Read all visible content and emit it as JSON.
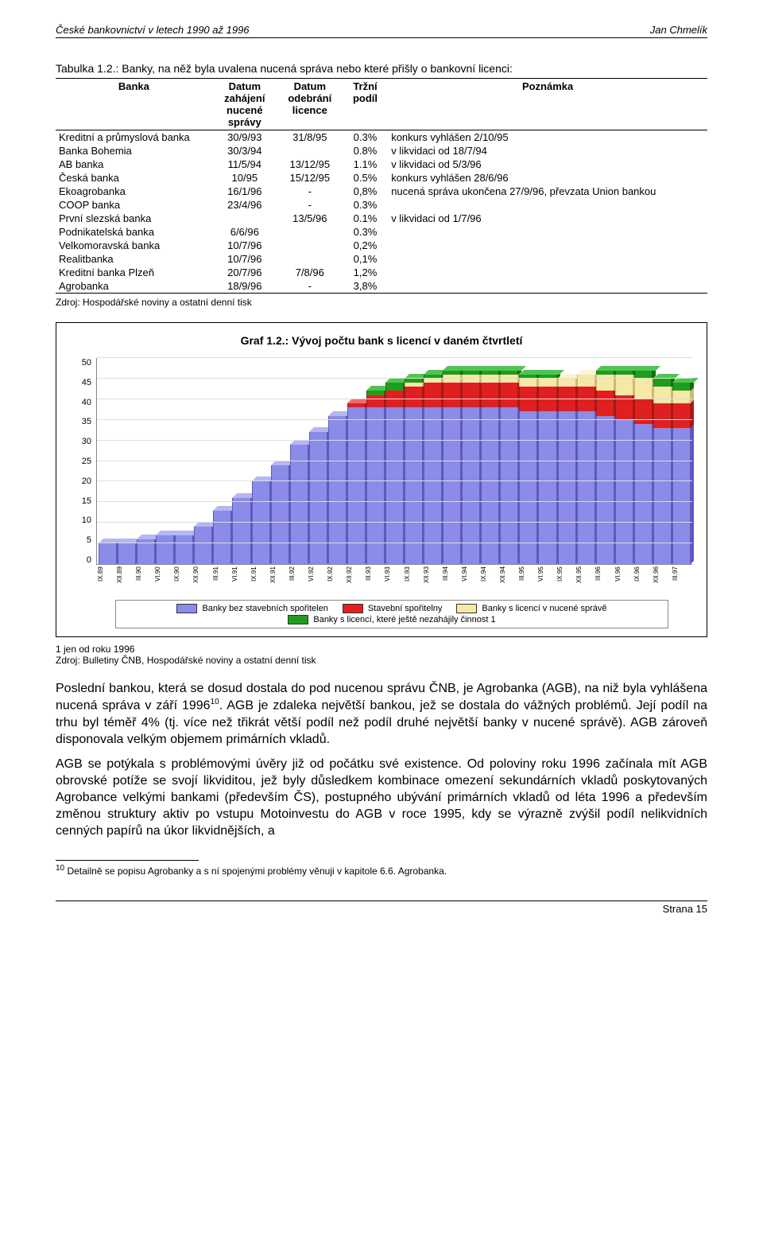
{
  "running_head": {
    "left": "České bankovnictví v letech 1990 až 1996",
    "right": "Jan Chmelík"
  },
  "table": {
    "caption": "Tabulka 1.2.: Banky, na něž byla uvalena nucená správa nebo které přišly o bankovní licenci:",
    "head": {
      "bank": "Banka",
      "d1": "Datum zahájení nucené správy",
      "d2": "Datum odebrání licence",
      "share": "Tržní podíl",
      "note": "Poznámka"
    },
    "rows": [
      {
        "bank": "Kreditní a průmyslová banka",
        "d1": "30/9/93",
        "d2": "31/8/95",
        "share": "0.3%",
        "note": "konkurs vyhlášen 2/10/95"
      },
      {
        "bank": "Banka Bohemia",
        "d1": "30/3/94",
        "d2": "",
        "share": "0.8%",
        "note": "v likvidaci od 18/7/94"
      },
      {
        "bank": "AB banka",
        "d1": "11/5/94",
        "d2": "13/12/95",
        "share": "1.1%",
        "note": "v likvidaci od 5/3/96"
      },
      {
        "bank": "Česká banka",
        "d1": "10/95",
        "d2": "15/12/95",
        "share": "0.5%",
        "note": "konkurs vyhlášen 28/6/96"
      },
      {
        "bank": "Ekoagrobanka",
        "d1": "16/1/96",
        "d2": "-",
        "share": "0,8%",
        "note": "nucená správa ukončena 27/9/96, převzata Union bankou"
      },
      {
        "bank": "COOP banka",
        "d1": "23/4/96",
        "d2": "-",
        "share": "0.3%",
        "note": ""
      },
      {
        "bank": "První slezská banka",
        "d1": "",
        "d2": "13/5/96",
        "share": "0.1%",
        "note": "v likvidaci od 1/7/96"
      },
      {
        "bank": "Podnikatelská banka",
        "d1": "6/6/96",
        "d2": "",
        "share": "0.3%",
        "note": ""
      },
      {
        "bank": "Velkomoravská banka",
        "d1": "10/7/96",
        "d2": "",
        "share": "0,2%",
        "note": ""
      },
      {
        "bank": "Realitbanka",
        "d1": "10/7/96",
        "d2": "",
        "share": "0,1%",
        "note": ""
      },
      {
        "bank": "Kreditní banka Plzeň",
        "d1": "20/7/96",
        "d2": "7/8/96",
        "share": "1,2%",
        "note": ""
      },
      {
        "bank": "Agrobanka",
        "d1": "18/9/96",
        "d2": "-",
        "share": "3,8%",
        "note": ""
      }
    ],
    "source": "Zdroj: Hospodářské noviny a ostatní denní tisk"
  },
  "chart": {
    "title": "Graf 1.2.: Vývoj počtu bank s licencí v daném čtvrtletí",
    "ymax": 50,
    "ytick_step": 5,
    "yticks": [
      "50",
      "45",
      "40",
      "35",
      "30",
      "25",
      "20",
      "15",
      "10",
      "5",
      "0"
    ],
    "colors": {
      "plain": {
        "front": "#8b8be8",
        "side": "#5a5ac0",
        "top": "#b6b6f3"
      },
      "savings": {
        "front": "#e02020",
        "side": "#a81818",
        "top": "#f06a6a"
      },
      "forced": {
        "front": "#f6e9a8",
        "side": "#c9bb70",
        "top": "#fcf4cf"
      },
      "notyet": {
        "front": "#1f9d1f",
        "side": "#146b14",
        "top": "#4dc64d"
      },
      "grid": "#dcdcdc",
      "axis": "#888888",
      "background": "#ffffff"
    },
    "legend": [
      {
        "key": "plain",
        "label": "Banky bez stavebních spořitelen"
      },
      {
        "key": "savings",
        "label": "Stavební spořitelny"
      },
      {
        "key": "forced",
        "label": "Banky s licencí v nucené správě"
      },
      {
        "key": "notyet",
        "label": "Banky s licencí, které ještě nezahájily činnost 1"
      }
    ],
    "categories": [
      "IX.89",
      "XII.89",
      "III.90",
      "VI.90",
      "IX.90",
      "XII.90",
      "III.91",
      "VI.91",
      "IX.91",
      "XII.91",
      "III.92",
      "VI.92",
      "IX.92",
      "XII.92",
      "III.93",
      "VI.93",
      "IX.93",
      "XII.93",
      "III.94",
      "VI.94",
      "IX.94",
      "XII.94",
      "III.95",
      "VI.95",
      "IX.95",
      "XII.95",
      "III.96",
      "VI.96",
      "IX.96",
      "XII.96",
      "III.97"
    ],
    "series": [
      {
        "plain": 5,
        "savings": 0,
        "forced": 0,
        "notyet": 0
      },
      {
        "plain": 5,
        "savings": 0,
        "forced": 0,
        "notyet": 0
      },
      {
        "plain": 6,
        "savings": 0,
        "forced": 0,
        "notyet": 0
      },
      {
        "plain": 7,
        "savings": 0,
        "forced": 0,
        "notyet": 0
      },
      {
        "plain": 7,
        "savings": 0,
        "forced": 0,
        "notyet": 0
      },
      {
        "plain": 9,
        "savings": 0,
        "forced": 0,
        "notyet": 0
      },
      {
        "plain": 13,
        "savings": 0,
        "forced": 0,
        "notyet": 0
      },
      {
        "plain": 16,
        "savings": 0,
        "forced": 0,
        "notyet": 0
      },
      {
        "plain": 20,
        "savings": 0,
        "forced": 0,
        "notyet": 0
      },
      {
        "plain": 24,
        "savings": 0,
        "forced": 0,
        "notyet": 0
      },
      {
        "plain": 29,
        "savings": 0,
        "forced": 0,
        "notyet": 0
      },
      {
        "plain": 32,
        "savings": 0,
        "forced": 0,
        "notyet": 0
      },
      {
        "plain": 36,
        "savings": 0,
        "forced": 0,
        "notyet": 0
      },
      {
        "plain": 38,
        "savings": 1,
        "forced": 0,
        "notyet": 0
      },
      {
        "plain": 38,
        "savings": 3,
        "forced": 0,
        "notyet": 1
      },
      {
        "plain": 38,
        "savings": 4,
        "forced": 0,
        "notyet": 2
      },
      {
        "plain": 38,
        "savings": 5,
        "forced": 1,
        "notyet": 1
      },
      {
        "plain": 38,
        "savings": 6,
        "forced": 1,
        "notyet": 1
      },
      {
        "plain": 38,
        "savings": 6,
        "forced": 2,
        "notyet": 1
      },
      {
        "plain": 38,
        "savings": 6,
        "forced": 2,
        "notyet": 1
      },
      {
        "plain": 38,
        "savings": 6,
        "forced": 2,
        "notyet": 1
      },
      {
        "plain": 38,
        "savings": 6,
        "forced": 2,
        "notyet": 1
      },
      {
        "plain": 37,
        "savings": 6,
        "forced": 2,
        "notyet": 1
      },
      {
        "plain": 37,
        "savings": 6,
        "forced": 2,
        "notyet": 1
      },
      {
        "plain": 37,
        "savings": 6,
        "forced": 2,
        "notyet": 0
      },
      {
        "plain": 37,
        "savings": 6,
        "forced": 3,
        "notyet": 0
      },
      {
        "plain": 36,
        "savings": 6,
        "forced": 4,
        "notyet": 1
      },
      {
        "plain": 35,
        "savings": 6,
        "forced": 5,
        "notyet": 1
      },
      {
        "plain": 34,
        "savings": 6,
        "forced": 5,
        "notyet": 2
      },
      {
        "plain": 33,
        "savings": 6,
        "forced": 4,
        "notyet": 2
      },
      {
        "plain": 33,
        "savings": 6,
        "forced": 3,
        "notyet": 2
      }
    ]
  },
  "chart_footnote_line1": "1 jen od roku 1996",
  "chart_footnote_line2": "Zdroj: Bulletiny ČNB, Hospodářské noviny a ostatní denní tisk",
  "para1": "Poslední bankou, která se dosud dostala do pod nucenou správu ČNB, je Agrobanka (AGB), na niž byla vyhlášena nucená správa v září 1996",
  "para1_sup": "10",
  "para1b": ". AGB je zdaleka největší bankou, jež se dostala do vážných problémů. Její podíl na trhu byl téměř 4% (tj. více než třikrát větší podíl než podíl druhé největší banky v nucené správě). AGB zároveň disponovala velkým objemem primárních vkladů.",
  "para2": "AGB se potýkala s problémovými úvěry již od počátku své existence. Od poloviny roku 1996 začínala mít AGB obrovské potíže se svojí likviditou, jež byly důsledkem kombinace omezení sekundárních vkladů poskytovaných Agrobance velkými bankami (především ČS), postupného ubývání primárních vkladů od léta 1996 a především změnou struktury aktiv po vstupu Motoinvestu do AGB v roce 1995, kdy se výrazně zvýšil podíl nelikvidních cenných papírů na úkor likvidnějších, a",
  "endnote_sup": "10",
  "endnote": " Detailně se popisu Agrobanky a s ní spojenými problémy věnuji v kapitole 6.6. Agrobanka.",
  "page_foot": "Strana 15"
}
